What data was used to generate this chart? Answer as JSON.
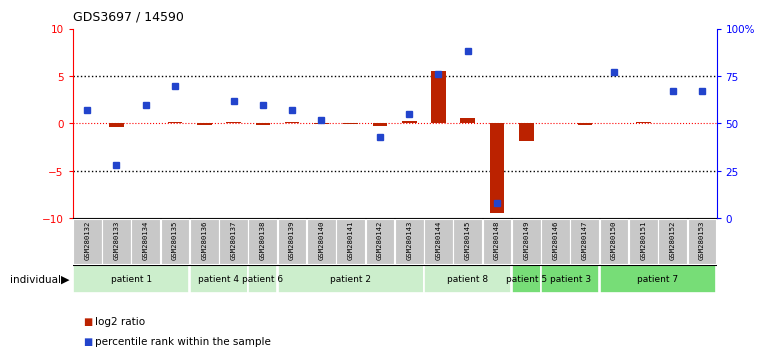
{
  "title": "GDS3697 / 14590",
  "samples": [
    "GSM280132",
    "GSM280133",
    "GSM280134",
    "GSM280135",
    "GSM280136",
    "GSM280137",
    "GSM280138",
    "GSM280139",
    "GSM280140",
    "GSM280141",
    "GSM280142",
    "GSM280143",
    "GSM280144",
    "GSM280145",
    "GSM280148",
    "GSM280149",
    "GSM280146",
    "GSM280147",
    "GSM280150",
    "GSM280151",
    "GSM280152",
    "GSM280153"
  ],
  "log2_ratio": [
    0.1,
    -0.4,
    0.1,
    0.2,
    -0.2,
    0.15,
    -0.2,
    0.15,
    -0.1,
    -0.1,
    -0.3,
    0.3,
    5.5,
    0.6,
    -9.5,
    -1.8,
    0.1,
    -0.15,
    0.1,
    0.15,
    0.1,
    0.1
  ],
  "percentile": [
    57,
    28,
    60,
    70,
    null,
    62,
    60,
    57,
    52,
    null,
    43,
    55,
    76,
    88,
    8,
    null,
    null,
    null,
    77,
    null,
    67,
    67
  ],
  "patients": [
    {
      "label": "patient 1",
      "start": 0,
      "end": 4,
      "color": "#cceecc"
    },
    {
      "label": "patient 4",
      "start": 4,
      "end": 6,
      "color": "#cceecc"
    },
    {
      "label": "patient 6",
      "start": 6,
      "end": 7,
      "color": "#cceecc"
    },
    {
      "label": "patient 2",
      "start": 7,
      "end": 12,
      "color": "#cceecc"
    },
    {
      "label": "patient 8",
      "start": 12,
      "end": 15,
      "color": "#cceecc"
    },
    {
      "label": "patient 5",
      "start": 15,
      "end": 16,
      "color": "#77dd77"
    },
    {
      "label": "patient 3",
      "start": 16,
      "end": 18,
      "color": "#77dd77"
    },
    {
      "label": "patient 7",
      "start": 18,
      "end": 22,
      "color": "#77dd77"
    }
  ],
  "ylim_left": [
    -10,
    10
  ],
  "ylim_right": [
    0,
    100
  ],
  "yticks_left": [
    -10,
    -5,
    0,
    5,
    10
  ],
  "yticks_right": [
    0,
    25,
    50,
    75,
    100
  ],
  "bar_color_red": "#bb2200",
  "bar_color_blue": "#2244cc",
  "background_color": "#ffffff",
  "sample_bg_color": "#c8c8c8",
  "legend_red": "log2 ratio",
  "legend_blue": "percentile rank within the sample"
}
